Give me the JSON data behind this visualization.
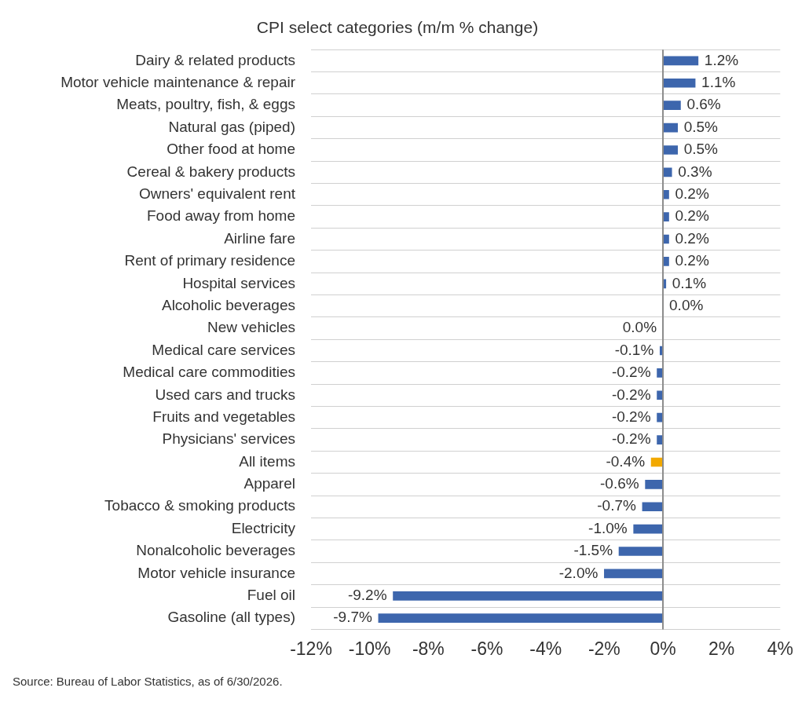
{
  "chart_data": {
    "type": "bar",
    "orientation": "horizontal",
    "title": "CPI select categories (m/m % change)",
    "categories": [
      "Dairy & related products",
      "Motor vehicle maintenance & repair",
      "Meats, poultry, fish, & eggs",
      "Natural gas (piped)",
      "Other food at home",
      "Cereal & bakery products",
      "Owners' equivalent rent",
      "Food away from home",
      "Airline fare",
      "Rent of primary residence",
      "Hospital services",
      "Alcoholic beverages",
      "New vehicles",
      "Medical care services",
      "Medical care commodities",
      "Used cars and trucks",
      "Fruits and vegetables",
      "Physicians' services",
      "All items",
      "Apparel",
      "Tobacco & smoking products",
      "Electricity",
      "Nonalcoholic beverages",
      "Motor vehicle insurance",
      "Fuel oil",
      "Gasoline (all types)"
    ],
    "values": [
      1.2,
      1.1,
      0.6,
      0.5,
      0.5,
      0.3,
      0.2,
      0.2,
      0.2,
      0.2,
      0.1,
      0.0,
      -0.0,
      -0.1,
      -0.2,
      -0.2,
      -0.2,
      -0.2,
      -0.4,
      -0.6,
      -0.7,
      -1.0,
      -1.5,
      -2.0,
      -9.2,
      -9.7
    ],
    "value_labels": [
      "1.2%",
      "1.1%",
      "0.6%",
      "0.5%",
      "0.5%",
      "0.3%",
      "0.2%",
      "0.2%",
      "0.2%",
      "0.2%",
      "0.1%",
      "0.0%",
      "0.0%",
      "-0.1%",
      "-0.2%",
      "-0.2%",
      "-0.2%",
      "-0.2%",
      "-0.4%",
      "-0.6%",
      "-0.7%",
      "-1.0%",
      "-1.5%",
      "-2.0%",
      "-9.2%",
      "-9.7%"
    ],
    "colors": [
      "#3d66ad",
      "#3d66ad",
      "#3d66ad",
      "#3d66ad",
      "#3d66ad",
      "#3d66ad",
      "#3d66ad",
      "#3d66ad",
      "#3d66ad",
      "#3d66ad",
      "#3d66ad",
      "#3d66ad",
      "#3d66ad",
      "#3d66ad",
      "#3d66ad",
      "#3d66ad",
      "#3d66ad",
      "#3d66ad",
      "#f2a900",
      "#3d66ad",
      "#3d66ad",
      "#3d66ad",
      "#3d66ad",
      "#3d66ad",
      "#3d66ad",
      "#3d66ad"
    ],
    "xlim": [
      -12,
      4
    ],
    "xticks": [
      {
        "value": -12,
        "label": "-12%"
      },
      {
        "value": -10,
        "label": "-10%"
      },
      {
        "value": -8,
        "label": "-8%"
      },
      {
        "value": -6,
        "label": "-6%"
      },
      {
        "value": -4,
        "label": "-4%"
      },
      {
        "value": -2,
        "label": "-2%"
      },
      {
        "value": 0,
        "label": "0%"
      },
      {
        "value": 2,
        "label": "2%"
      },
      {
        "value": 4,
        "label": "4%"
      }
    ],
    "ref_lines": [
      {
        "axis": "x",
        "value": 0,
        "color": "#8c8c8c"
      }
    ],
    "grid": "y",
    "legend": false,
    "annotations": [
      "Source: Bureau of Labor Statistics, as of  6/30/2026."
    ]
  }
}
